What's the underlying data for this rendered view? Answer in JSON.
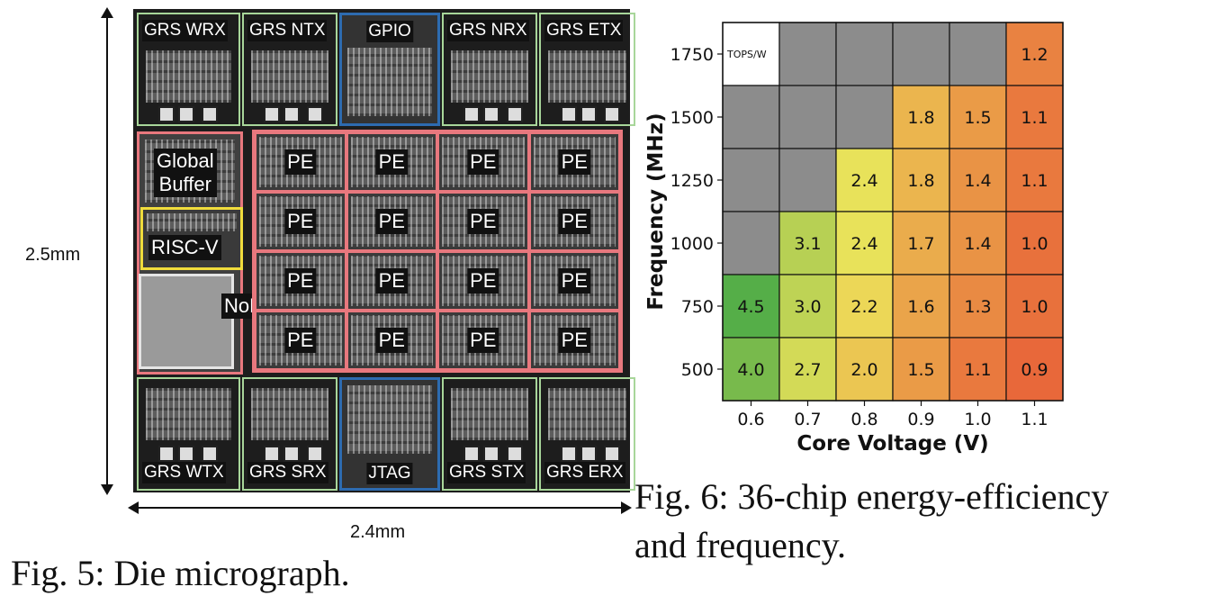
{
  "die": {
    "top_blocks": [
      {
        "label": "GRS WRX",
        "kind": "grs"
      },
      {
        "label": "GRS NTX",
        "kind": "grs"
      },
      {
        "label": "GPIO",
        "kind": "io"
      },
      {
        "label": "GRS NRX",
        "kind": "grs"
      },
      {
        "label": "GRS ETX",
        "kind": "grs"
      }
    ],
    "bottom_blocks": [
      {
        "label": "GRS WTX",
        "kind": "grs"
      },
      {
        "label": "GRS SRX",
        "kind": "grs"
      },
      {
        "label": "JTAG",
        "kind": "io"
      },
      {
        "label": "GRS STX",
        "kind": "grs"
      },
      {
        "label": "GRS ERX",
        "kind": "grs"
      }
    ],
    "global_buffer_line1": "Global",
    "global_buffer_line2": "Buffer",
    "riscv_label": "RISC-V",
    "nop_label": "NoP",
    "pe_label": "PE",
    "pe_rows": 4,
    "pe_cols": 4,
    "colors": {
      "grs_border": "#a8d69a",
      "io_border": "#2d6bb0",
      "pe_border": "#e8787e",
      "riscv_border": "#f0dc3c"
    }
  },
  "dimensions": {
    "height": "2.5mm",
    "width": "2.4mm"
  },
  "captions": {
    "fig5": "Fig. 5: Die micrograph.",
    "fig6_line1": "Fig. 6: 36-chip energy-efficiency",
    "fig6_line2": "and frequency."
  },
  "chart_data": {
    "type": "heatmap",
    "xlabel": "Core Voltage (V)",
    "ylabel": "Frequency (MHz)",
    "x_categories": [
      "0.6",
      "0.7",
      "0.8",
      "0.9",
      "1.0",
      "1.1"
    ],
    "y_categories": [
      "1750",
      "1500",
      "1250",
      "1000",
      "750",
      "500"
    ],
    "cell_unit_label": "TOPS/W",
    "values": [
      [
        null,
        null,
        null,
        null,
        null,
        1.2
      ],
      [
        null,
        null,
        null,
        1.8,
        1.5,
        1.1
      ],
      [
        null,
        null,
        2.4,
        1.8,
        1.4,
        1.1
      ],
      [
        null,
        3.1,
        2.4,
        1.7,
        1.4,
        1.0
      ],
      [
        4.5,
        3.0,
        2.2,
        1.6,
        1.3,
        1.0
      ],
      [
        4.0,
        2.7,
        2.0,
        1.5,
        1.1,
        0.9
      ]
    ],
    "colors": {
      "missing": "#8c8c8c",
      "low": "#e8683a",
      "mid": "#ece35a",
      "high": "#55ae48"
    }
  }
}
